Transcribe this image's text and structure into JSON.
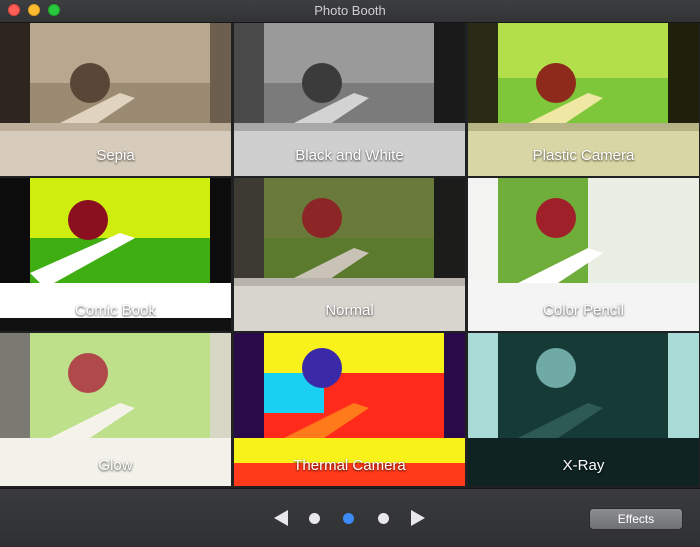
{
  "window": {
    "title": "Photo Booth"
  },
  "effects": [
    {
      "label": "Sepia"
    },
    {
      "label": "Black and White"
    },
    {
      "label": "Plastic Camera"
    },
    {
      "label": "Comic Book"
    },
    {
      "label": "Normal"
    },
    {
      "label": "Color Pencil"
    },
    {
      "label": "Glow"
    },
    {
      "label": "Thermal Camera"
    },
    {
      "label": "X-Ray"
    }
  ],
  "pager": {
    "current_page": 2,
    "total_pages": 3
  },
  "toolbar": {
    "effects_label": "Effects"
  },
  "colors": {
    "active_dot": "#3d8bf7",
    "inactive_dot": "#e8e8ea"
  }
}
